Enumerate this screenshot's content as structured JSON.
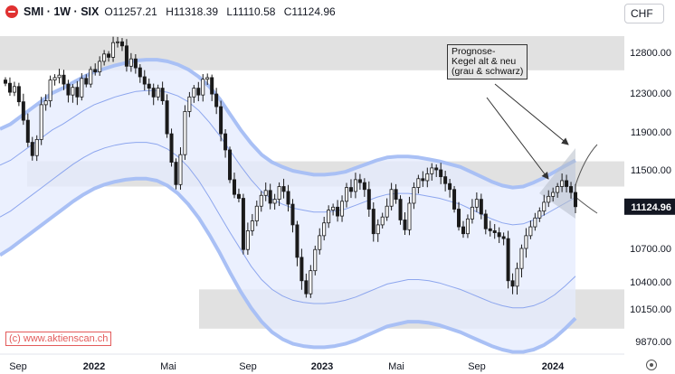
{
  "header": {
    "symbol": "SMI · 1W · SIX",
    "open": "O11257.21",
    "high": "H11318.39",
    "low": "L11110.58",
    "close": "C11124.96"
  },
  "currency": "CHF",
  "watermark": "(c) www.aktienscan.ch",
  "annotation": "Prognose-\nKegel alt & neu\n(grau & schwarz)",
  "colors": {
    "candle": "#1a1a1a",
    "band_outer": "#a9c0f5",
    "band_fill": "#e4ebfd",
    "zone": "#dcdcdc",
    "last_price_bg": "#131722"
  },
  "chart_data": {
    "type": "candlestick",
    "y_axis_ticks": [
      "12800.00",
      "12300.00",
      "11900.00",
      "11500.00",
      "10700.00",
      "10400.00",
      "10150.00",
      "9870.00"
    ],
    "last_price_label": "11124.96",
    "x_axis_labels": [
      "Sep",
      "2022",
      "Mai",
      "Sep",
      "2023",
      "Mai",
      "Sep",
      "2024"
    ],
    "ylim": [
      9750,
      13250
    ],
    "last_price": 11124.96,
    "zones": [
      {
        "from": 12580,
        "to": 13000
      },
      {
        "from": 11330,
        "to": 11590
      },
      {
        "from": 9980,
        "to": 10330
      }
    ],
    "weekly_close": [
      12420,
      12310,
      12380,
      12210,
      12020,
      11790,
      11650,
      11820,
      12180,
      12220,
      12460,
      12490,
      12520,
      12410,
      12280,
      12370,
      12260,
      12480,
      12410,
      12590,
      12560,
      12690,
      12780,
      12740,
      12920,
      12930,
      12880,
      12630,
      12720,
      12610,
      12500,
      12410,
      12360,
      12260,
      12360,
      12220,
      11880,
      11580,
      11350,
      11660,
      12110,
      12260,
      12360,
      12280,
      12470,
      12490,
      12290,
      12160,
      11880,
      11710,
      11400,
      11250,
      11210,
      10690,
      10880,
      10980,
      11130,
      11240,
      11290,
      11160,
      11200,
      11330,
      11280,
      11150,
      10940,
      10620,
      10410,
      10290,
      10500,
      10690,
      10830,
      10960,
      11090,
      11120,
      11030,
      11180,
      11320,
      11280,
      11400,
      11370,
      11300,
      11100,
      10850,
      10940,
      11020,
      11130,
      11300,
      11200,
      10990,
      10890,
      11160,
      11320,
      11410,
      11390,
      11460,
      11520,
      11500,
      11430,
      11360,
      11300,
      11100,
      10920,
      10850,
      11000,
      11120,
      11200,
      11050,
      10900,
      10880,
      10860,
      10820,
      10800,
      10410,
      10360,
      10520,
      10700,
      10830,
      10920,
      11010,
      11080,
      11170,
      11230,
      11270,
      11330,
      11390,
      11330,
      11270,
      11124.96
    ],
    "band_inner_upper": [
      11550,
      11600,
      11680,
      11760,
      11840,
      11920,
      11980,
      12050,
      12120,
      12180,
      12220,
      12260,
      12290,
      12320,
      12330,
      12330,
      12310,
      12270,
      12210,
      12120,
      12000,
      11860,
      11700,
      11540,
      11400,
      11280,
      11200,
      11150,
      11110,
      11090,
      11070,
      11070,
      11080,
      11100,
      11140,
      11180,
      11220,
      11250,
      11260,
      11260,
      11250,
      11230,
      11210,
      11180,
      11150,
      11100,
      11050,
      11000,
      10960,
      10940,
      10950,
      10990,
      11040,
      11100,
      11160,
      11220
    ],
    "band_inner_lower": [
      11020,
      11080,
      11160,
      11240,
      11320,
      11400,
      11480,
      11560,
      11630,
      11690,
      11730,
      11760,
      11780,
      11790,
      11790,
      11770,
      11720,
      11640,
      11530,
      11390,
      11220,
      11040,
      10860,
      10690,
      10540,
      10420,
      10330,
      10270,
      10230,
      10210,
      10200,
      10200,
      10210,
      10230,
      10260,
      10300,
      10340,
      10380,
      10400,
      10420,
      10420,
      10410,
      10390,
      10360,
      10330,
      10290,
      10250,
      10210,
      10180,
      10160,
      10160,
      10180,
      10220,
      10280,
      10360,
      10450
    ]
  }
}
